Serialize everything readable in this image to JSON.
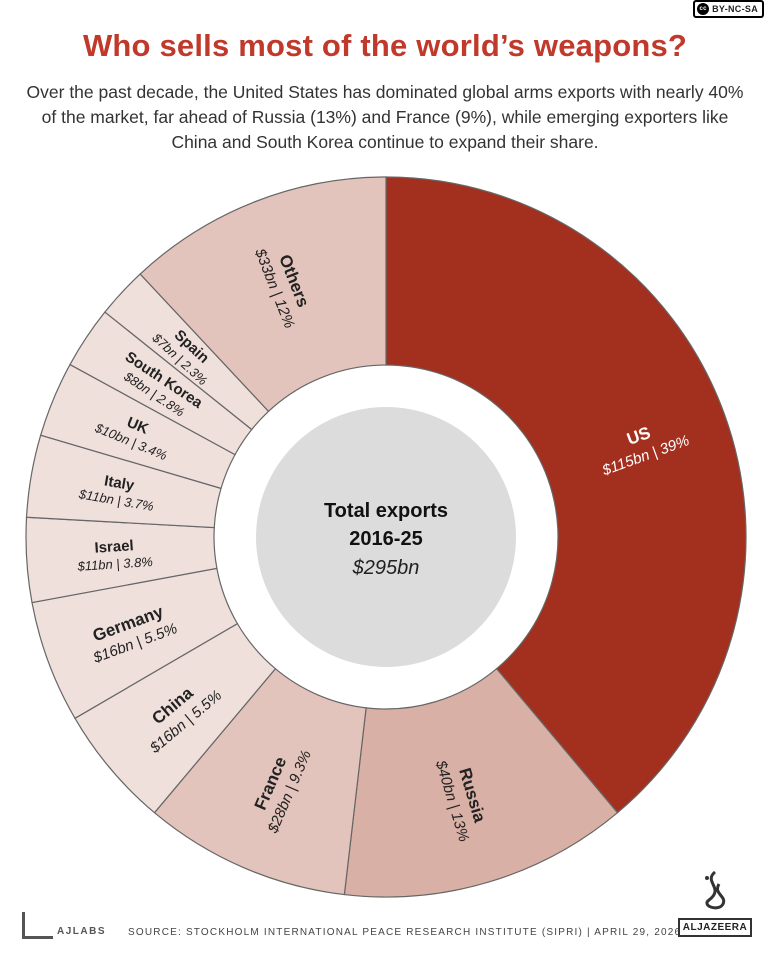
{
  "license": "BY-NC-SA",
  "title": "Who sells most of the world’s weapons?",
  "subtitle": "Over the past decade, the United States has dominated global arms exports with nearly 40% of the market, far ahead of Russia (13%) and France (9%), while emerging exporters like China and South Korea continue to expand their share.",
  "chart_data": {
    "type": "pie",
    "variant": "donut",
    "center": {
      "line1": "Total exports",
      "line2": "2016-25",
      "value": "$295bn"
    },
    "slices": [
      {
        "name": "US",
        "detail": "$115bn | 39%",
        "percent": 39.0,
        "color": "#a3301f",
        "label_color": "#ffffff"
      },
      {
        "name": "Russia",
        "detail": "$40bn | 13%",
        "percent": 13.0,
        "color": "#d9b0a6",
        "label_color": "#222222"
      },
      {
        "name": "France",
        "detail": "$28bn | 9.3%",
        "percent": 9.3,
        "color": "#e3c4bc",
        "label_color": "#222222"
      },
      {
        "name": "China",
        "detail": "$16bn | 5.5%",
        "percent": 5.5,
        "color": "#f0e0dc",
        "label_color": "#222222"
      },
      {
        "name": "Germany",
        "detail": "$16bn | 5.5%",
        "percent": 5.5,
        "color": "#f0e0dc",
        "label_color": "#222222"
      },
      {
        "name": "Israel",
        "detail": "$11bn | 3.8%",
        "percent": 3.8,
        "color": "#f0e0dc",
        "label_color": "#222222"
      },
      {
        "name": "Italy",
        "detail": "$11bn | 3.7%",
        "percent": 3.7,
        "color": "#f0e0dc",
        "label_color": "#222222"
      },
      {
        "name": "UK",
        "detail": "$10bn | 3.4%",
        "percent": 3.4,
        "color": "#f0e0dc",
        "label_color": "#222222"
      },
      {
        "name": "South Korea",
        "detail": "$8bn | 2.8%",
        "percent": 2.8,
        "color": "#f0e0dc",
        "label_color": "#222222"
      },
      {
        "name": "Spain",
        "detail": "$7bn | 2.3%",
        "percent": 2.3,
        "color": "#f0e0dc",
        "label_color": "#222222"
      },
      {
        "name": "Others",
        "detail": "$33bn | 12%",
        "percent": 12.0,
        "color": "#e3c4bc",
        "label_color": "#222222"
      }
    ]
  },
  "footer": {
    "brand": "AJLABS",
    "source": "SOURCE: STOCKHOLM INTERNATIONAL PEACE RESEARCH INSTITUTE (SIPRI)  |  APRIL 29, 2026",
    "publisher": "ALJAZEERA"
  }
}
